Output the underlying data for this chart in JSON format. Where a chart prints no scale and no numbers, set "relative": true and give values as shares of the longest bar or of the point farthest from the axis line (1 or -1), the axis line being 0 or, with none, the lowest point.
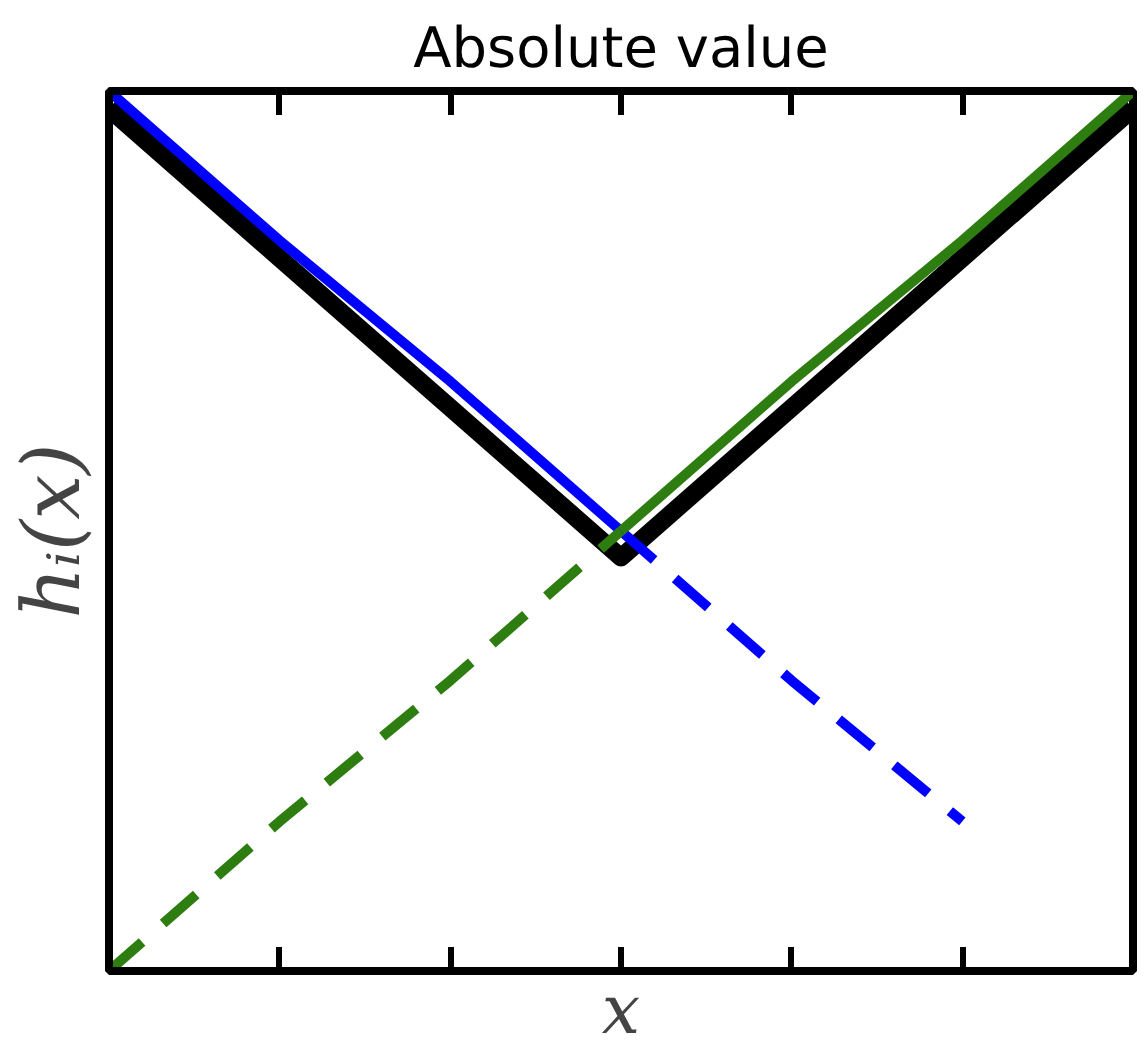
{
  "chart_data": {
    "type": "line",
    "title": "Absolute value",
    "xlabel": "x",
    "ylabel": "hᵢ(x)",
    "relative": true,
    "categories": [
      null,
      null,
      null,
      null,
      null,
      null,
      null
    ],
    "series": [
      {
        "color": "#000000",
        "line_style": "solid",
        "values": [
          0.98,
          0.81,
          0.64,
          0.47,
          0.64,
          0.81,
          0.98
        ]
      },
      {
        "color": "#0000ff",
        "line_style": "solid",
        "values": [
          1,
          0.83,
          0.67,
          0.5,
          null,
          null,
          null
        ]
      },
      {
        "color": "#0000ff",
        "line_style": "dashed",
        "values": [
          null,
          null,
          null,
          0.5,
          0.33,
          0.17,
          null
        ]
      },
      {
        "color": "#2e7d10",
        "line_style": "dashed",
        "values": [
          0,
          0.17,
          0.33,
          0.5,
          null,
          null,
          null
        ]
      },
      {
        "color": "#2e7d10",
        "line_style": "solid",
        "values": [
          null,
          null,
          null,
          0.5,
          0.67,
          0.83,
          1
        ]
      }
    ]
  }
}
